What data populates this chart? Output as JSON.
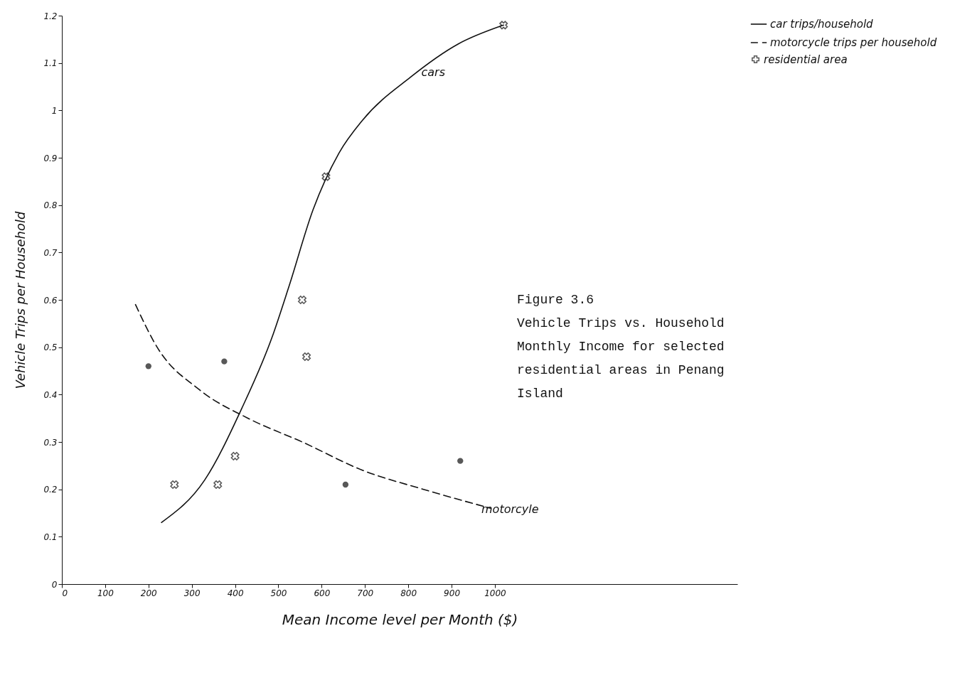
{
  "chart_data": {
    "type": "line",
    "title": "Figure 3.6",
    "subtitle": "Vehicle Trips vs. Household Monthly Income for selected residential areas in Penang Island",
    "xlabel": "Mean Income level per Month ($)",
    "ylabel": "Vehicle Trips per Household",
    "xlim": [
      0,
      1560
    ],
    "ylim": [
      0,
      1.2
    ],
    "xticks": [
      0,
      100,
      200,
      300,
      400,
      500,
      600,
      700,
      800,
      900,
      1000
    ],
    "yticks": [
      0,
      0.1,
      0.2,
      0.3,
      0.4,
      0.5,
      0.6,
      0.7,
      0.8,
      0.9,
      1.0,
      1.1,
      1.2
    ],
    "grid": false,
    "legend": "right",
    "series": [
      {
        "name": "car trips/household",
        "line_style": "solid",
        "color": "#111111",
        "x": [
          230,
          330,
          415,
          485,
          525,
          580,
          640,
          695,
          805,
          915,
          1020
        ],
        "values": [
          0.13,
          0.22,
          0.37,
          0.52,
          0.63,
          0.79,
          0.91,
          0.98,
          1.07,
          1.14,
          1.18
        ]
      },
      {
        "name": "motorcycle trips per household",
        "line_style": "dashed",
        "color": "#111111",
        "x": [
          170,
          220,
          318,
          430,
          555,
          695,
          835,
          990
        ],
        "values": [
          0.59,
          0.5,
          0.41,
          0.35,
          0.3,
          0.24,
          0.2,
          0.16
        ]
      },
      {
        "name": "residential area",
        "type": "scatter",
        "marker": "cross",
        "color": "#111111",
        "x": [
          260,
          360,
          400,
          565,
          555,
          610,
          1020
        ],
        "values": [
          0.21,
          0.21,
          0.27,
          0.48,
          0.6,
          0.86,
          1.18
        ]
      },
      {
        "type": "scatter",
        "marker": "circle",
        "color": "#111111",
        "x": [
          200,
          375,
          655,
          920
        ],
        "values": [
          0.46,
          0.47,
          0.21,
          0.26
        ]
      }
    ],
    "annotations": [
      {
        "text": "cars",
        "x": 830,
        "y": 1.08
      },
      "motorcyle"
    ]
  }
}
